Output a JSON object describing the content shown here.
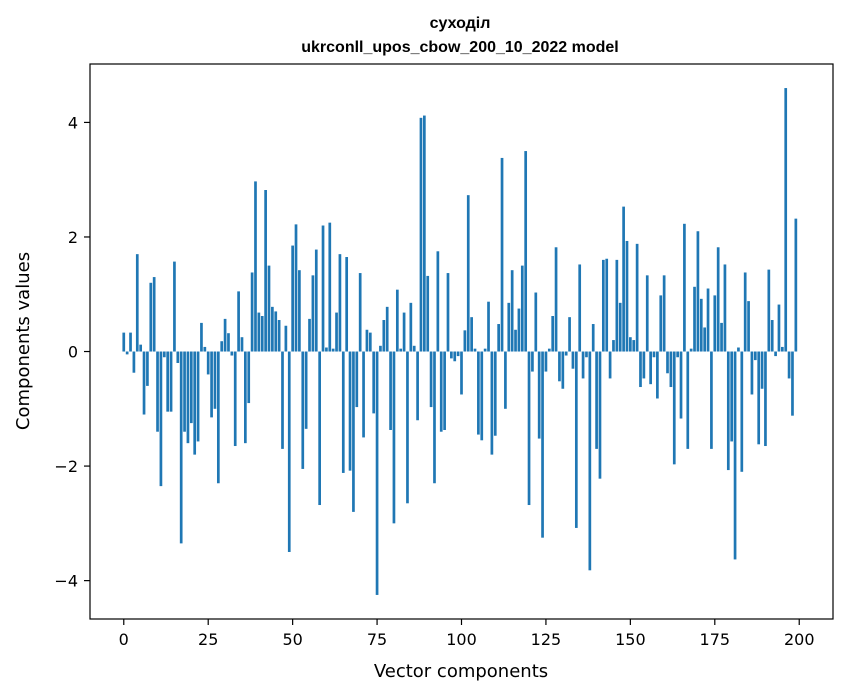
{
  "chart_data": {
    "type": "bar",
    "title": "суходіл",
    "subtitle": "ukrconll_upos_cbow_200_10_2022 model",
    "xlabel": "Vector components",
    "ylabel": "Components values",
    "xlim": [
      -10,
      210
    ],
    "ylim": [
      -4.67,
      5.02
    ],
    "xticks": [
      0,
      25,
      50,
      75,
      100,
      125,
      150,
      175,
      200
    ],
    "yticks": [
      -4,
      -2,
      0,
      2,
      4
    ],
    "xtick_labels": [
      "0",
      "25",
      "50",
      "75",
      "100",
      "125",
      "150",
      "175",
      "200"
    ],
    "ytick_labels": [
      "−4",
      "−2",
      "0",
      "2",
      "4"
    ],
    "bar_color": "#1f77b4",
    "x": [
      0,
      1,
      2,
      3,
      4,
      5,
      6,
      7,
      8,
      9,
      10,
      11,
      12,
      13,
      14,
      15,
      16,
      17,
      18,
      19,
      20,
      21,
      22,
      23,
      24,
      25,
      26,
      27,
      28,
      29,
      30,
      31,
      32,
      33,
      34,
      35,
      36,
      37,
      38,
      39,
      40,
      41,
      42,
      43,
      44,
      45,
      46,
      47,
      48,
      49,
      50,
      51,
      52,
      53,
      54,
      55,
      56,
      57,
      58,
      59,
      60,
      61,
      62,
      63,
      64,
      65,
      66,
      67,
      68,
      69,
      70,
      71,
      72,
      73,
      74,
      75,
      76,
      77,
      78,
      79,
      80,
      81,
      82,
      83,
      84,
      85,
      86,
      87,
      88,
      89,
      90,
      91,
      92,
      93,
      94,
      95,
      96,
      97,
      98,
      99,
      100,
      101,
      102,
      103,
      104,
      105,
      106,
      107,
      108,
      109,
      110,
      111,
      112,
      113,
      114,
      115,
      116,
      117,
      118,
      119,
      120,
      121,
      122,
      123,
      124,
      125,
      126,
      127,
      128,
      129,
      130,
      131,
      132,
      133,
      134,
      135,
      136,
      137,
      138,
      139,
      140,
      141,
      142,
      143,
      144,
      145,
      146,
      147,
      148,
      149,
      150,
      151,
      152,
      153,
      154,
      155,
      156,
      157,
      158,
      159,
      160,
      161,
      162,
      163,
      164,
      165,
      166,
      167,
      168,
      169,
      170,
      171,
      172,
      173,
      174,
      175,
      176,
      177,
      178,
      179,
      180,
      181,
      182,
      183,
      184,
      185,
      186,
      187,
      188,
      189,
      190,
      191,
      192,
      193,
      194,
      195,
      196,
      197,
      198,
      199
    ],
    "values": [
      0.33,
      -0.05,
      0.33,
      -0.37,
      1.7,
      0.12,
      -1.1,
      -0.6,
      1.2,
      1.3,
      -1.4,
      -2.35,
      -0.1,
      -1.05,
      -1.05,
      1.57,
      -0.2,
      -3.35,
      -1.4,
      -1.6,
      -1.25,
      -1.8,
      -1.57,
      0.5,
      0.08,
      -0.4,
      -1.15,
      -1.0,
      -2.3,
      0.18,
      0.57,
      0.32,
      -0.07,
      -1.65,
      1.05,
      0.25,
      -1.6,
      -0.9,
      1.38,
      2.97,
      0.68,
      0.62,
      2.82,
      1.5,
      0.78,
      0.7,
      0.55,
      -1.7,
      0.45,
      -3.5,
      1.85,
      2.22,
      1.42,
      -2.05,
      -1.35,
      0.57,
      1.33,
      1.78,
      -2.68,
      2.2,
      0.07,
      2.25,
      0.05,
      0.68,
      1.7,
      -2.12,
      1.65,
      -2.08,
      -2.8,
      -0.97,
      1.37,
      -1.5,
      0.38,
      0.33,
      -1.08,
      -4.25,
      0.1,
      0.55,
      0.78,
      -1.37,
      -3.0,
      1.08,
      0.05,
      0.68,
      -2.65,
      0.85,
      0.1,
      -1.2,
      4.08,
      4.12,
      1.32,
      -0.97,
      -2.3,
      1.75,
      -1.4,
      -1.37,
      1.37,
      -0.12,
      -0.17,
      -0.08,
      -0.75,
      0.37,
      2.73,
      0.6,
      0.05,
      -1.45,
      -1.55,
      0.05,
      0.87,
      -1.8,
      -1.47,
      0.48,
      3.38,
      -1.0,
      0.85,
      1.42,
      0.38,
      0.75,
      1.5,
      3.5,
      -2.68,
      -0.35,
      1.03,
      -1.52,
      -3.25,
      -0.35,
      0.05,
      0.62,
      1.82,
      -0.52,
      -0.65,
      -0.07,
      0.6,
      -0.3,
      -3.08,
      1.52,
      -0.47,
      -0.1,
      -3.82,
      0.48,
      -1.7,
      -2.22,
      1.6,
      1.62,
      -0.47,
      0.2,
      1.6,
      0.85,
      2.53,
      1.93,
      0.25,
      0.2,
      1.88,
      -0.62,
      -0.47,
      1.33,
      -0.57,
      -0.1,
      -0.82,
      0.98,
      1.33,
      -0.38,
      -0.62,
      -1.97,
      -0.1,
      -1.17,
      2.23,
      -1.7,
      0.05,
      1.13,
      2.1,
      0.92,
      0.42,
      1.1,
      -1.7,
      0.98,
      1.82,
      0.5,
      1.52,
      -2.07,
      -1.57,
      -3.63,
      0.07,
      -2.1,
      1.38,
      0.88,
      -0.75,
      -0.15,
      -1.62,
      -0.65,
      -1.65,
      1.43,
      0.55,
      -0.08,
      0.82,
      0.08,
      4.6,
      -0.47,
      -1.12,
      2.32
    ]
  }
}
